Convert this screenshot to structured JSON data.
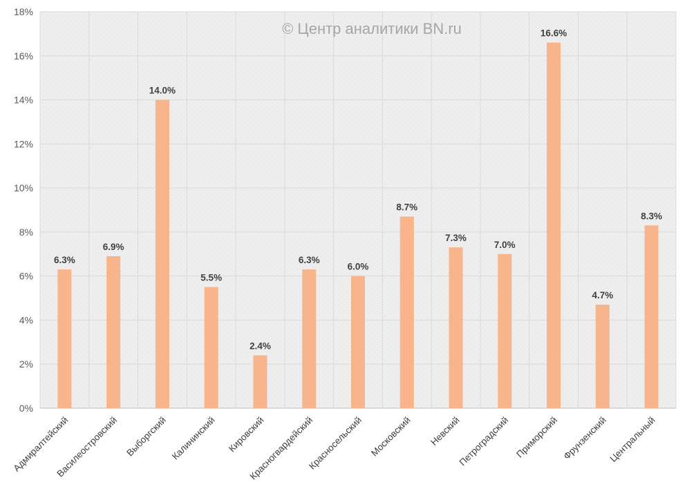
{
  "watermark": "© Центр аналитики BN.ru",
  "colors": {
    "bar": "#f8b48a",
    "plot_background": "#f2f2f2",
    "grid": "#d9d9d9"
  },
  "chart_data": {
    "type": "bar",
    "title": "",
    "xlabel": "",
    "ylabel": "",
    "ylim": [
      0,
      18
    ],
    "y_ticks": [
      0,
      2,
      4,
      6,
      8,
      10,
      12,
      14,
      16,
      18
    ],
    "y_tick_labels": [
      "0%",
      "2%",
      "4%",
      "6%",
      "8%",
      "10%",
      "12%",
      "14%",
      "16%",
      "18%"
    ],
    "grid": true,
    "legend": "none",
    "categories": [
      "Адмиралтейский",
      "Василеостровский",
      "Выборгский",
      "Калининский",
      "Кировский",
      "Красногвардейский",
      "Красносельский",
      "Московский",
      "Невский",
      "Петроградский",
      "Приморский",
      "Фрунзенский",
      "Центральный"
    ],
    "values": [
      6.3,
      6.9,
      14.0,
      5.5,
      2.4,
      6.3,
      6.0,
      8.7,
      7.3,
      7.0,
      16.6,
      4.7,
      8.3
    ],
    "data_labels": [
      "6.3%",
      "6.9%",
      "14.0%",
      "5.5%",
      "2.4%",
      "6.3%",
      "6.0%",
      "8.7%",
      "7.3%",
      "7.0%",
      "16.6%",
      "4.7%",
      "8.3%"
    ]
  }
}
